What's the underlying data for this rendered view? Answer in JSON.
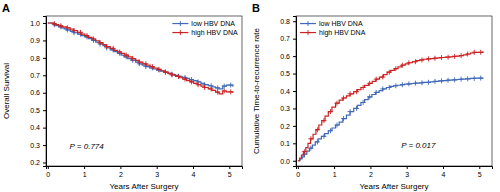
{
  "chart_data": [
    {
      "type": "step",
      "title": "A",
      "xlabel": "Years After Surgery",
      "ylabel": "Overall Survival",
      "xlim": [
        -0.05,
        5.35
      ],
      "ylim": [
        0.18,
        1.04
      ],
      "xticks": [
        0,
        1,
        2,
        3,
        4,
        5
      ],
      "yticks": [
        0.2,
        0.3,
        0.4,
        0.5,
        0.6,
        0.7,
        0.8,
        0.9,
        {
          "value": 1.0,
          "label": "1.0"
        }
      ],
      "grid": false,
      "legend": "upper right",
      "marker": "plus",
      "annotations": [
        {
          "text": "P = 0.774",
          "x": 0.6,
          "y": 0.28
        }
      ],
      "series": [
        {
          "name": "low HBV DNA",
          "color": "#4169b8",
          "x": [
            0.0,
            0.08,
            0.16,
            0.22,
            0.3,
            0.38,
            0.45,
            0.52,
            0.62,
            0.72,
            0.82,
            0.92,
            1.02,
            1.12,
            1.22,
            1.32,
            1.42,
            1.52,
            1.62,
            1.72,
            1.82,
            1.92,
            2.02,
            2.1,
            2.2,
            2.3,
            2.42,
            2.52,
            2.6,
            2.7,
            2.8,
            2.9,
            3.0,
            3.1,
            3.2,
            3.3,
            3.4,
            3.5,
            3.6,
            3.7,
            3.8,
            3.9,
            4.0,
            4.12,
            4.22,
            4.32,
            4.42,
            4.52,
            4.62,
            4.72,
            4.82,
            4.92,
            5.1
          ],
          "values": [
            1.0,
            1.0,
            0.99,
            0.985,
            0.978,
            0.972,
            0.966,
            0.96,
            0.952,
            0.944,
            0.936,
            0.928,
            0.92,
            0.91,
            0.9,
            0.89,
            0.88,
            0.87,
            0.858,
            0.846,
            0.836,
            0.826,
            0.816,
            0.806,
            0.796,
            0.786,
            0.776,
            0.766,
            0.758,
            0.75,
            0.742,
            0.736,
            0.73,
            0.724,
            0.718,
            0.712,
            0.706,
            0.7,
            0.694,
            0.688,
            0.682,
            0.676,
            0.67,
            0.662,
            0.654,
            0.646,
            0.64,
            0.634,
            0.628,
            0.622,
            0.638,
            0.644,
            0.635
          ],
          "censor_x": [
            0.18,
            0.36,
            0.54,
            0.72,
            0.9,
            1.08,
            1.26,
            1.44,
            1.62,
            1.8,
            1.98,
            2.16,
            2.34,
            2.52,
            2.7,
            2.88,
            3.06,
            3.24,
            3.42,
            3.6,
            3.78,
            3.96,
            4.14,
            4.32,
            4.5,
            4.68,
            4.86,
            5.04
          ]
        },
        {
          "name": "high HBV DNA",
          "color": "#cc2222",
          "x": [
            0.0,
            0.06,
            0.14,
            0.22,
            0.3,
            0.4,
            0.52,
            0.62,
            0.72,
            0.82,
            0.92,
            1.02,
            1.12,
            1.22,
            1.32,
            1.42,
            1.52,
            1.62,
            1.72,
            1.82,
            1.92,
            2.02,
            2.12,
            2.22,
            2.32,
            2.42,
            2.52,
            2.62,
            2.72,
            2.82,
            2.92,
            3.02,
            3.12,
            3.22,
            3.32,
            3.42,
            3.52,
            3.62,
            3.72,
            3.82,
            3.92,
            4.02,
            4.12,
            4.22,
            4.32,
            4.42,
            4.52,
            4.62,
            4.72,
            4.82,
            4.92,
            5.1
          ],
          "values": [
            1.0,
            1.0,
            0.996,
            0.99,
            0.984,
            0.978,
            0.972,
            0.965,
            0.956,
            0.946,
            0.936,
            0.927,
            0.918,
            0.908,
            0.898,
            0.887,
            0.876,
            0.865,
            0.854,
            0.843,
            0.834,
            0.826,
            0.816,
            0.806,
            0.796,
            0.786,
            0.776,
            0.766,
            0.758,
            0.75,
            0.742,
            0.734,
            0.726,
            0.718,
            0.71,
            0.702,
            0.694,
            0.686,
            0.678,
            0.67,
            0.662,
            0.654,
            0.646,
            0.638,
            0.63,
            0.622,
            0.614,
            0.604,
            0.594,
            0.61,
            0.605,
            0.6
          ],
          "censor_x": [
            0.18,
            0.36,
            0.54,
            0.72,
            0.9,
            1.08,
            1.26,
            1.44,
            1.62,
            1.8,
            1.98,
            2.16,
            2.34,
            2.52,
            2.7,
            2.88,
            3.06,
            3.24,
            3.42,
            3.6,
            3.78,
            3.96,
            4.14,
            4.32,
            4.5,
            4.68,
            4.86,
            5.04
          ]
        }
      ]
    },
    {
      "type": "step",
      "title": "B",
      "xlabel": "Years After Surgery",
      "ylabel": "Cumulative Time-to-recurrence rate",
      "xlim": [
        -0.05,
        5.35
      ],
      "ylim": [
        -0.03,
        0.83
      ],
      "xticks": [
        0,
        1,
        2,
        3,
        4,
        5
      ],
      "yticks": [
        {
          "value": 0.0,
          "label": "0.0"
        },
        0.1,
        0.2,
        0.3,
        0.4,
        0.5,
        0.6,
        0.7,
        0.8
      ],
      "grid": false,
      "legend": "upper left",
      "marker": "plus",
      "annotations": [
        {
          "text": "P = 0.017",
          "x": 2.85,
          "y": 0.075
        }
      ],
      "series": [
        {
          "name": "low HBV DNA",
          "color": "#4169b8",
          "x": [
            0.0,
            0.06,
            0.12,
            0.18,
            0.25,
            0.32,
            0.4,
            0.48,
            0.56,
            0.65,
            0.74,
            0.84,
            0.94,
            1.04,
            1.14,
            1.24,
            1.34,
            1.44,
            1.54,
            1.64,
            1.74,
            1.84,
            1.94,
            2.04,
            2.14,
            2.24,
            2.34,
            2.44,
            2.54,
            2.64,
            2.74,
            2.84,
            2.94,
            3.04,
            3.14,
            3.24,
            3.34,
            3.44,
            3.54,
            3.65,
            3.75,
            3.88,
            4.0,
            4.12,
            4.25,
            4.38,
            4.5,
            4.62,
            4.75,
            4.88,
            5.1
          ],
          "values": [
            0.0,
            0.01,
            0.022,
            0.038,
            0.055,
            0.072,
            0.09,
            0.108,
            0.125,
            0.14,
            0.156,
            0.172,
            0.188,
            0.205,
            0.222,
            0.242,
            0.262,
            0.282,
            0.3,
            0.318,
            0.334,
            0.35,
            0.366,
            0.38,
            0.392,
            0.402,
            0.412,
            0.42,
            0.426,
            0.43,
            0.433,
            0.436,
            0.439,
            0.441,
            0.443,
            0.445,
            0.447,
            0.449,
            0.45,
            0.452,
            0.455,
            0.458,
            0.46,
            0.462,
            0.464,
            0.466,
            0.468,
            0.47,
            0.472,
            0.474,
            0.476
          ],
          "censor_x": [
            0.18,
            0.36,
            0.54,
            0.72,
            0.9,
            1.08,
            1.26,
            1.44,
            1.62,
            1.8,
            1.98,
            2.16,
            2.34,
            2.52,
            2.7,
            2.88,
            3.06,
            3.24,
            3.42,
            3.6,
            3.78,
            3.96,
            4.14,
            4.32,
            4.5,
            4.68,
            4.86,
            5.04
          ]
        },
        {
          "name": "high HBV DNA",
          "color": "#cc2222",
          "x": [
            0.0,
            0.05,
            0.1,
            0.16,
            0.22,
            0.28,
            0.35,
            0.42,
            0.5,
            0.58,
            0.66,
            0.75,
            0.84,
            0.94,
            1.04,
            1.14,
            1.24,
            1.34,
            1.44,
            1.54,
            1.64,
            1.74,
            1.84,
            1.95,
            2.05,
            2.15,
            2.25,
            2.36,
            2.46,
            2.56,
            2.66,
            2.76,
            2.86,
            2.96,
            3.06,
            3.16,
            3.26,
            3.36,
            3.46,
            3.56,
            3.66,
            3.76,
            3.86,
            3.96,
            4.06,
            4.16,
            4.26,
            4.36,
            4.46,
            4.56,
            4.66,
            4.76,
            4.86,
            5.1
          ],
          "values": [
            0.0,
            0.015,
            0.032,
            0.052,
            0.075,
            0.1,
            0.126,
            0.152,
            0.178,
            0.205,
            0.23,
            0.256,
            0.282,
            0.308,
            0.33,
            0.348,
            0.36,
            0.372,
            0.384,
            0.396,
            0.408,
            0.42,
            0.432,
            0.444,
            0.455,
            0.468,
            0.48,
            0.494,
            0.508,
            0.518,
            0.528,
            0.538,
            0.548,
            0.556,
            0.562,
            0.568,
            0.574,
            0.578,
            0.582,
            0.584,
            0.586,
            0.588,
            0.59,
            0.592,
            0.594,
            0.596,
            0.598,
            0.6,
            0.603,
            0.607,
            0.612,
            0.618,
            0.622,
            0.628
          ],
          "censor_x": [
            0.18,
            0.36,
            0.54,
            0.72,
            0.9,
            1.08,
            1.26,
            1.44,
            1.62,
            1.8,
            1.98,
            2.16,
            2.34,
            2.52,
            2.7,
            2.88,
            3.06,
            3.24,
            3.42,
            3.6,
            3.78,
            3.96,
            4.14,
            4.32,
            4.5,
            4.68,
            4.86,
            5.04
          ]
        }
      ]
    }
  ]
}
